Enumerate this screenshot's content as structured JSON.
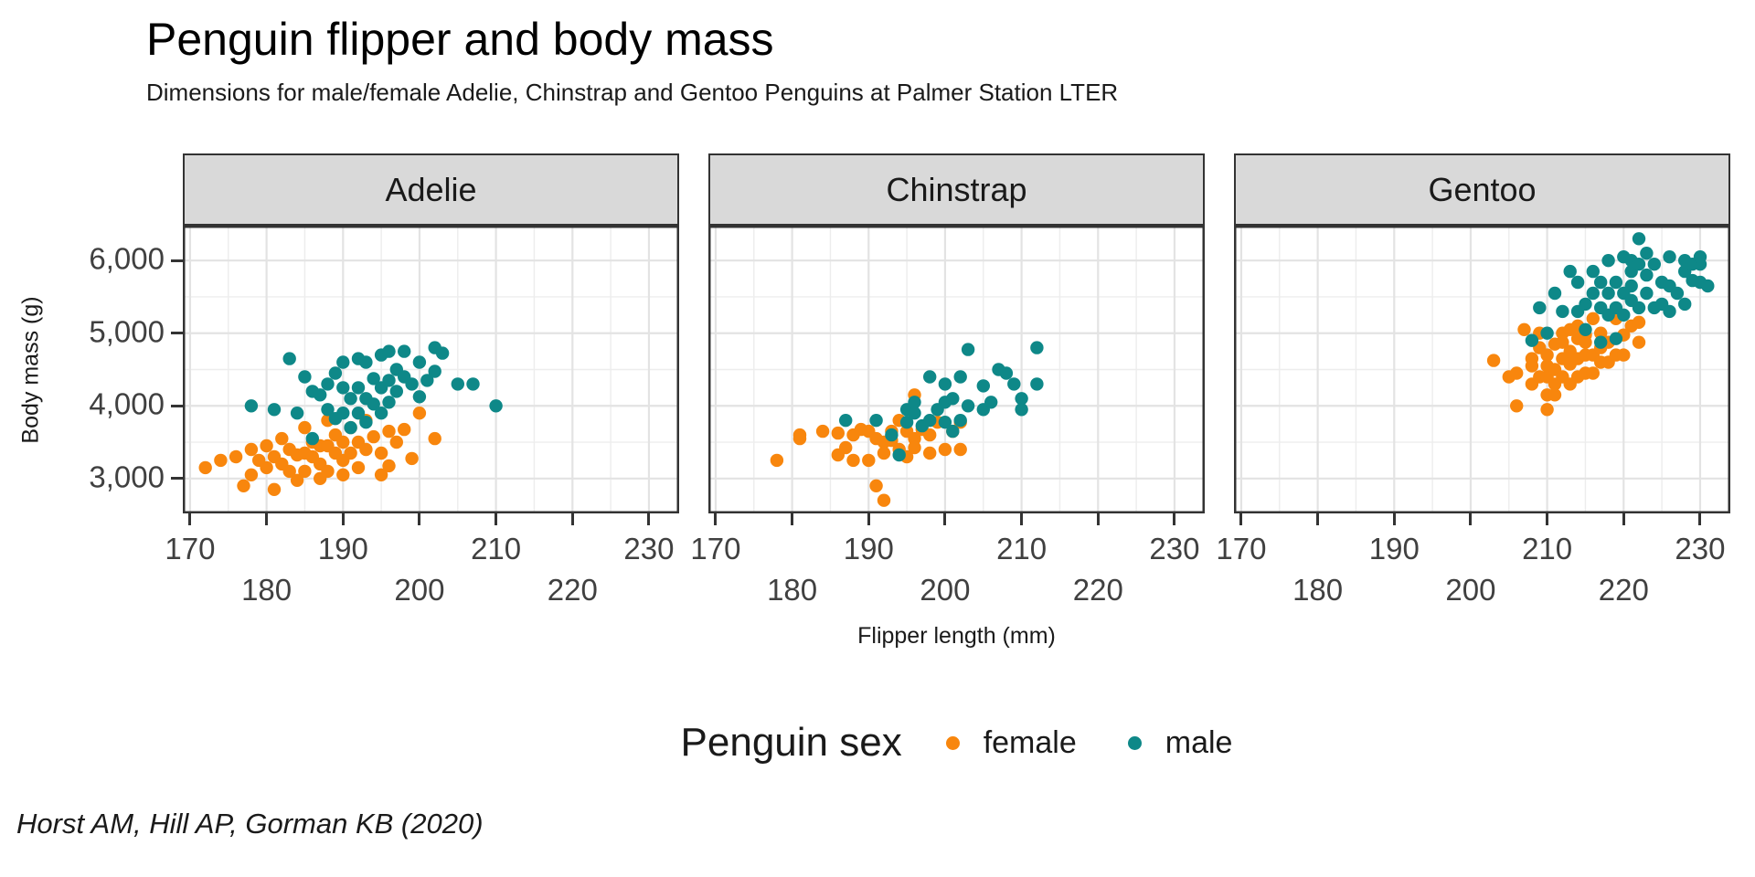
{
  "header": {
    "title": "Penguin flipper and body mass",
    "subtitle": "Dimensions for male/female Adelie, Chinstrap and Gentoo Penguins at Palmer Station LTER"
  },
  "caption": "Horst AM, Hill AP, Gorman KB (2020)",
  "legend": {
    "title": "Penguin sex",
    "items": [
      {
        "label": "female",
        "color": "#F8860D"
      },
      {
        "label": "male",
        "color": "#0E8888"
      }
    ]
  },
  "colors": {
    "female": "#F8860D",
    "male": "#0E8888",
    "strip_fill": "#D9D9D9",
    "panel_border": "#333333",
    "grid_major": "#E3E3E3",
    "grid_minor": "#EDEDED",
    "tick_label": "#404040"
  },
  "chart_data": {
    "type": "scatter",
    "title": "Penguin flipper and body mass",
    "subtitle": "Dimensions for male/female Adelie, Chinstrap and Gentoo Penguins at Palmer Station LTER",
    "caption": "Horst AM, Hill AP, Gorman KB (2020)",
    "xlabel": "Flipper length (mm)",
    "ylabel": "Body mass (g)",
    "legend_title": "Penguin sex",
    "legend_position": "bottom",
    "grid": "major+minor",
    "xlim": [
      169.05,
      233.95
    ],
    "ylim": [
      2520,
      6480
    ],
    "x_ticks": [
      {
        "value": 170,
        "label": "170",
        "row": 1
      },
      {
        "value": 180,
        "label": "180",
        "row": 2
      },
      {
        "value": 190,
        "label": "190",
        "row": 1
      },
      {
        "value": 200,
        "label": "200",
        "row": 2
      },
      {
        "value": 210,
        "label": "210",
        "row": 1
      },
      {
        "value": 220,
        "label": "220",
        "row": 2
      },
      {
        "value": 230,
        "label": "230",
        "row": 1
      }
    ],
    "x_minor": [
      175,
      185,
      195,
      205,
      215,
      225
    ],
    "y_ticks": [
      {
        "value": 6000,
        "label": "6,000"
      },
      {
        "value": 5000,
        "label": "5,000"
      },
      {
        "value": 4000,
        "label": "4,000"
      },
      {
        "value": 3000,
        "label": "3,000"
      }
    ],
    "y_minor": [
      3500,
      4500,
      5500
    ],
    "facets": [
      {
        "name": "Adelie",
        "female": [
          [
            172,
            3150
          ],
          [
            174,
            3250
          ],
          [
            176,
            3300
          ],
          [
            177,
            2900
          ],
          [
            178,
            3400
          ],
          [
            178,
            3050
          ],
          [
            179,
            3250
          ],
          [
            180,
            3450
          ],
          [
            180,
            3150
          ],
          [
            181,
            3300
          ],
          [
            181,
            2850
          ],
          [
            182,
            3550
          ],
          [
            182,
            3200
          ],
          [
            183,
            3100
          ],
          [
            183,
            3400
          ],
          [
            184,
            3325
          ],
          [
            184,
            2975
          ],
          [
            185,
            3700
          ],
          [
            185,
            3350
          ],
          [
            185,
            3100
          ],
          [
            186,
            3300
          ],
          [
            186,
            3500
          ],
          [
            187,
            3450
          ],
          [
            187,
            3000
          ],
          [
            187,
            3200
          ],
          [
            188,
            3800
          ],
          [
            188,
            3450
          ],
          [
            188,
            3100
          ],
          [
            189,
            3350
          ],
          [
            189,
            3600
          ],
          [
            190,
            3250
          ],
          [
            190,
            3050
          ],
          [
            190,
            3500
          ],
          [
            191,
            3700
          ],
          [
            191,
            3350
          ],
          [
            192,
            3150
          ],
          [
            192,
            3500
          ],
          [
            193,
            3800
          ],
          [
            193,
            3400
          ],
          [
            194,
            3575
          ],
          [
            195,
            3350
          ],
          [
            195,
            3050
          ],
          [
            196,
            3650
          ],
          [
            196,
            3175
          ],
          [
            197,
            3500
          ],
          [
            198,
            3675
          ],
          [
            199,
            3275
          ],
          [
            200,
            3900
          ],
          [
            202,
            3550
          ]
        ],
        "male": [
          [
            178,
            4000
          ],
          [
            181,
            3950
          ],
          [
            183,
            4650
          ],
          [
            184,
            3900
          ],
          [
            185,
            4400
          ],
          [
            186,
            3550
          ],
          [
            186,
            4200
          ],
          [
            187,
            4150
          ],
          [
            188,
            4300
          ],
          [
            188,
            3950
          ],
          [
            189,
            4450
          ],
          [
            189,
            3825
          ],
          [
            190,
            4250
          ],
          [
            190,
            3900
          ],
          [
            190,
            4600
          ],
          [
            191,
            4100
          ],
          [
            191,
            3700
          ],
          [
            192,
            4650
          ],
          [
            192,
            4250
          ],
          [
            192,
            3900
          ],
          [
            193,
            4600
          ],
          [
            193,
            4100
          ],
          [
            193,
            3775
          ],
          [
            194,
            4375
          ],
          [
            194,
            4025
          ],
          [
            195,
            4700
          ],
          [
            195,
            4250
          ],
          [
            195,
            3900
          ],
          [
            196,
            4750
          ],
          [
            196,
            4350
          ],
          [
            196,
            4050
          ],
          [
            197,
            4500
          ],
          [
            197,
            4200
          ],
          [
            198,
            4750
          ],
          [
            198,
            4400
          ],
          [
            199,
            4300
          ],
          [
            200,
            4600
          ],
          [
            200,
            4125
          ],
          [
            201,
            4350
          ],
          [
            202,
            4800
          ],
          [
            202,
            4475
          ],
          [
            203,
            4725
          ],
          [
            205,
            4300
          ],
          [
            207,
            4300
          ],
          [
            210,
            4000
          ]
        ]
      },
      {
        "name": "Chinstrap",
        "female": [
          [
            178,
            3250
          ],
          [
            181,
            3600
          ],
          [
            181,
            3550
          ],
          [
            184,
            3650
          ],
          [
            186,
            3325
          ],
          [
            186,
            3625
          ],
          [
            187,
            3425
          ],
          [
            188,
            3600
          ],
          [
            188,
            3250
          ],
          [
            189,
            3675
          ],
          [
            190,
            3650
          ],
          [
            190,
            3250
          ],
          [
            191,
            3550
          ],
          [
            191,
            2900
          ],
          [
            192,
            3500
          ],
          [
            192,
            3350
          ],
          [
            192,
            2700
          ],
          [
            193,
            3650
          ],
          [
            193,
            3525
          ],
          [
            194,
            3400
          ],
          [
            194,
            3800
          ],
          [
            195,
            3650
          ],
          [
            195,
            3300
          ],
          [
            196,
            3550
          ],
          [
            196,
            4150
          ],
          [
            196,
            3425
          ],
          [
            197,
            3675
          ],
          [
            198,
            3600
          ],
          [
            198,
            3350
          ],
          [
            199,
            3775
          ],
          [
            200,
            3400
          ],
          [
            201,
            3650
          ],
          [
            202,
            3775
          ],
          [
            202,
            3400
          ]
        ],
        "male": [
          [
            187,
            3800
          ],
          [
            191,
            3800
          ],
          [
            193,
            3600
          ],
          [
            194,
            3325
          ],
          [
            195,
            3775
          ],
          [
            195,
            3950
          ],
          [
            196,
            3900
          ],
          [
            196,
            4050
          ],
          [
            197,
            3725
          ],
          [
            198,
            3800
          ],
          [
            198,
            4400
          ],
          [
            199,
            3950
          ],
          [
            200,
            4050
          ],
          [
            200,
            3775
          ],
          [
            200,
            4300
          ],
          [
            201,
            4100
          ],
          [
            201,
            3650
          ],
          [
            202,
            3800
          ],
          [
            202,
            4400
          ],
          [
            203,
            4000
          ],
          [
            203,
            4775
          ],
          [
            205,
            4275
          ],
          [
            205,
            3950
          ],
          [
            206,
            4050
          ],
          [
            207,
            4500
          ],
          [
            208,
            4450
          ],
          [
            209,
            4300
          ],
          [
            210,
            4100
          ],
          [
            210,
            3950
          ],
          [
            212,
            4800
          ],
          [
            212,
            4300
          ]
        ]
      },
      {
        "name": "Gentoo",
        "female": [
          [
            203,
            4625
          ],
          [
            205,
            4400
          ],
          [
            206,
            4450
          ],
          [
            206,
            4000
          ],
          [
            207,
            5050
          ],
          [
            208,
            4300
          ],
          [
            208,
            4650
          ],
          [
            208,
            4550
          ],
          [
            209,
            4400
          ],
          [
            209,
            4800
          ],
          [
            209,
            5000
          ],
          [
            210,
            4150
          ],
          [
            210,
            4550
          ],
          [
            210,
            4700
          ],
          [
            210,
            4400
          ],
          [
            210,
            3950
          ],
          [
            211,
            4500
          ],
          [
            211,
            4300
          ],
          [
            211,
            4850
          ],
          [
            211,
            4150
          ],
          [
            212,
            4650
          ],
          [
            212,
            4400
          ],
          [
            212,
            5000
          ],
          [
            212,
            4875
          ],
          [
            213,
            4575
          ],
          [
            213,
            4300
          ],
          [
            213,
            4750
          ],
          [
            213,
            5050
          ],
          [
            214,
            4925
          ],
          [
            214,
            4650
          ],
          [
            214,
            4400
          ],
          [
            214,
            5100
          ],
          [
            215,
            4975
          ],
          [
            215,
            4700
          ],
          [
            215,
            4450
          ],
          [
            215,
            4875
          ],
          [
            216,
            4700
          ],
          [
            216,
            5200
          ],
          [
            216,
            4450
          ],
          [
            217,
            4600
          ],
          [
            217,
            5000
          ],
          [
            217,
            4800
          ],
          [
            218,
            4875
          ],
          [
            218,
            4600
          ],
          [
            219,
            4700
          ],
          [
            219,
            5200
          ],
          [
            220,
            4975
          ],
          [
            220,
            4700
          ],
          [
            221,
            5100
          ],
          [
            222,
            4875
          ],
          [
            222,
            5150
          ]
        ],
        "male": [
          [
            208,
            4900
          ],
          [
            209,
            5350
          ],
          [
            210,
            5000
          ],
          [
            211,
            5550
          ],
          [
            212,
            5300
          ],
          [
            213,
            5850
          ],
          [
            214,
            5700
          ],
          [
            214,
            5300
          ],
          [
            215,
            5400
          ],
          [
            215,
            5050
          ],
          [
            216,
            5550
          ],
          [
            216,
            5850
          ],
          [
            217,
            5350
          ],
          [
            217,
            5700
          ],
          [
            217,
            4875
          ],
          [
            218,
            5550
          ],
          [
            218,
            6000
          ],
          [
            218,
            5250
          ],
          [
            219,
            5350
          ],
          [
            219,
            5700
          ],
          [
            219,
            4925
          ],
          [
            220,
            5550
          ],
          [
            220,
            6050
          ],
          [
            220,
            5250
          ],
          [
            221,
            5650
          ],
          [
            221,
            5850
          ],
          [
            221,
            5450
          ],
          [
            221,
            6000
          ],
          [
            222,
            5950
          ],
          [
            222,
            5350
          ],
          [
            222,
            6300
          ],
          [
            223,
            5550
          ],
          [
            223,
            5800
          ],
          [
            223,
            6100
          ],
          [
            224,
            5950
          ],
          [
            224,
            5350
          ],
          [
            225,
            5700
          ],
          [
            225,
            5400
          ],
          [
            226,
            5650
          ],
          [
            226,
            6050
          ],
          [
            226,
            5300
          ],
          [
            227,
            5550
          ],
          [
            228,
            5850
          ],
          [
            228,
            6000
          ],
          [
            228,
            5400
          ],
          [
            229,
            5725
          ],
          [
            229,
            5950
          ],
          [
            230,
            5700
          ],
          [
            230,
            5950
          ],
          [
            230,
            6050
          ],
          [
            231,
            5650
          ]
        ]
      }
    ]
  }
}
